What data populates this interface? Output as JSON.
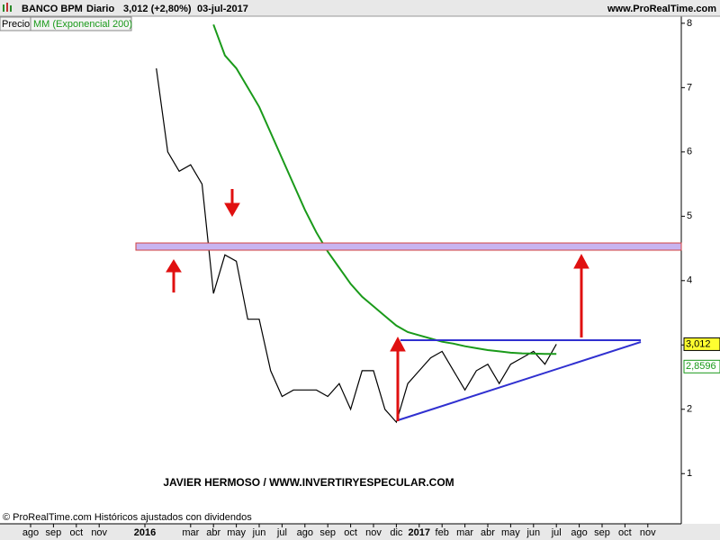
{
  "chart_data": {
    "type": "line",
    "title": "BANCO BPM",
    "period": "Diario",
    "quote": "3,012 (+2,80%)",
    "date": "03-jul-2017",
    "source": "www.ProRealTime.com",
    "annotation": "JAVIER HERMOSO / WWW.INVERTIRYESPECULAR.COM",
    "footnote": "© ProRealTime.com  Históricos ajustados con dividendos",
    "categories": [
      "ago",
      null,
      "sep",
      null,
      "oct",
      null,
      "nov",
      null,
      null,
      null,
      "2016",
      null,
      null,
      null,
      "mar",
      null,
      "abr",
      null,
      "may",
      null,
      "jun",
      null,
      "jul",
      null,
      "ago",
      null,
      "sep",
      null,
      "oct",
      null,
      "nov",
      null,
      "dic",
      null,
      "2017",
      null,
      "feb",
      null,
      "mar",
      null,
      "abr",
      null,
      "may",
      null,
      "jun",
      null,
      "jul",
      null,
      "ago",
      null,
      "sep",
      null,
      "oct",
      null,
      "nov"
    ],
    "series": [
      {
        "name": "Precio",
        "color": "#000000",
        "values": [
          null,
          null,
          null,
          null,
          null,
          null,
          null,
          null,
          null,
          null,
          null,
          7.3,
          6.0,
          5.7,
          5.8,
          5.5,
          3.8,
          4.4,
          4.3,
          3.4,
          3.4,
          2.6,
          2.2,
          2.3,
          2.3,
          2.3,
          2.2,
          2.4,
          2.0,
          2.6,
          2.6,
          2.0,
          1.8,
          2.4,
          2.6,
          2.8,
          2.9,
          2.6,
          2.3,
          2.6,
          2.7,
          2.4,
          2.7,
          2.8,
          2.9,
          2.7,
          3.012,
          null,
          null,
          null,
          null,
          null,
          null,
          null,
          null
        ],
        "value_labels": [
          null,
          null,
          null,
          null,
          null,
          null,
          null,
          null,
          null,
          null,
          null,
          null,
          null,
          null,
          null,
          null,
          null,
          null,
          null,
          null,
          null,
          null,
          null,
          null,
          null,
          null,
          null,
          null,
          null,
          null,
          null,
          null,
          null,
          null,
          null,
          null,
          null,
          null,
          null,
          null,
          null,
          null,
          null,
          null,
          null,
          null,
          "3,012",
          null,
          null,
          null,
          null,
          null,
          null,
          null,
          null
        ]
      },
      {
        "name": "MM (Exponencial 200)",
        "color": "#1a9a1a",
        "values": [
          null,
          null,
          null,
          null,
          null,
          null,
          null,
          null,
          null,
          null,
          null,
          null,
          null,
          null,
          null,
          null,
          7.98,
          7.5,
          7.3,
          7.0,
          6.7,
          6.3,
          5.9,
          5.5,
          5.1,
          4.75,
          4.45,
          4.2,
          3.95,
          3.75,
          3.6,
          3.45,
          3.3,
          3.2,
          3.15,
          3.1,
          3.05,
          3.02,
          2.98,
          2.95,
          2.92,
          2.9,
          2.88,
          2.87,
          2.865,
          2.86,
          2.8596,
          null,
          null,
          null,
          null,
          null,
          null,
          null,
          null
        ],
        "value_labels": [
          null,
          null,
          null,
          null,
          null,
          null,
          null,
          null,
          null,
          null,
          null,
          null,
          null,
          null,
          null,
          null,
          null,
          null,
          null,
          null,
          null,
          null,
          null,
          null,
          null,
          null,
          null,
          null,
          null,
          null,
          null,
          null,
          null,
          null,
          null,
          null,
          null,
          null,
          null,
          null,
          null,
          null,
          null,
          null,
          null,
          null,
          "2,8596",
          null,
          null,
          null,
          null,
          null,
          null,
          null,
          null
        ]
      }
    ],
    "ylim": [
      0.22,
      8.11
    ],
    "yticks": [
      1,
      2,
      3,
      4,
      5,
      6,
      7,
      8
    ],
    "grid": false
  }
}
